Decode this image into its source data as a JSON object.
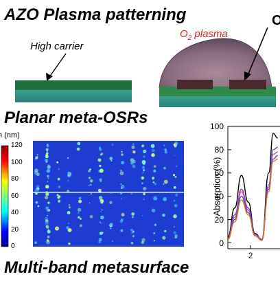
{
  "headings": {
    "azo": "AZO Plasma patterning",
    "planar": "Planar meta-OSRs",
    "multiband": "Multi-band metasurface"
  },
  "labels": {
    "high_carrier": "High carrier",
    "o2_plasma_prefix": "O",
    "o2_plasma_sub": "2",
    "o2_plasma_suffix": " plasma",
    "cut_letter": "O"
  },
  "colorbar": {
    "unit_label": "n (nm)",
    "ticks": [
      "120",
      "100",
      "80",
      "60",
      "40",
      "20",
      "0"
    ]
  },
  "chart_data": {
    "type": "line",
    "ylabel": "Absorption (%)",
    "y_ticks": [
      0,
      20,
      40,
      60,
      80,
      100
    ],
    "x_ticks": [
      2
    ],
    "ylim": [
      -5,
      100
    ],
    "xlim": [
      1.0,
      3.3
    ],
    "series": [
      {
        "color": "#000000",
        "x": [
          1.0,
          1.3,
          1.6,
          1.9,
          2.2,
          2.5,
          2.8,
          3.0,
          3.2
        ],
        "y": [
          5,
          30,
          58,
          35,
          8,
          3,
          60,
          94,
          90
        ]
      },
      {
        "color": "#7a3cc0",
        "x": [
          1.0,
          1.3,
          1.6,
          1.9,
          2.2,
          2.5,
          2.8,
          3.0,
          3.2
        ],
        "y": [
          4,
          24,
          46,
          30,
          7,
          3,
          50,
          80,
          82
        ]
      },
      {
        "color": "#cc44aa",
        "x": [
          1.0,
          1.3,
          1.6,
          1.9,
          2.2,
          2.5,
          2.8,
          3.0,
          3.2
        ],
        "y": [
          4,
          22,
          44,
          28,
          7,
          3,
          48,
          76,
          78
        ]
      },
      {
        "color": "#3355cc",
        "x": [
          1.0,
          1.3,
          1.6,
          1.9,
          2.2,
          2.5,
          2.8,
          3.0,
          3.2
        ],
        "y": [
          3,
          20,
          40,
          26,
          6,
          3,
          46,
          72,
          75
        ]
      },
      {
        "color": "#e07a20",
        "x": [
          1.0,
          1.3,
          1.6,
          1.9,
          2.2,
          2.5,
          2.8,
          3.0,
          3.2
        ],
        "y": [
          3,
          18,
          37,
          24,
          6,
          2,
          44,
          70,
          72
        ]
      }
    ]
  }
}
